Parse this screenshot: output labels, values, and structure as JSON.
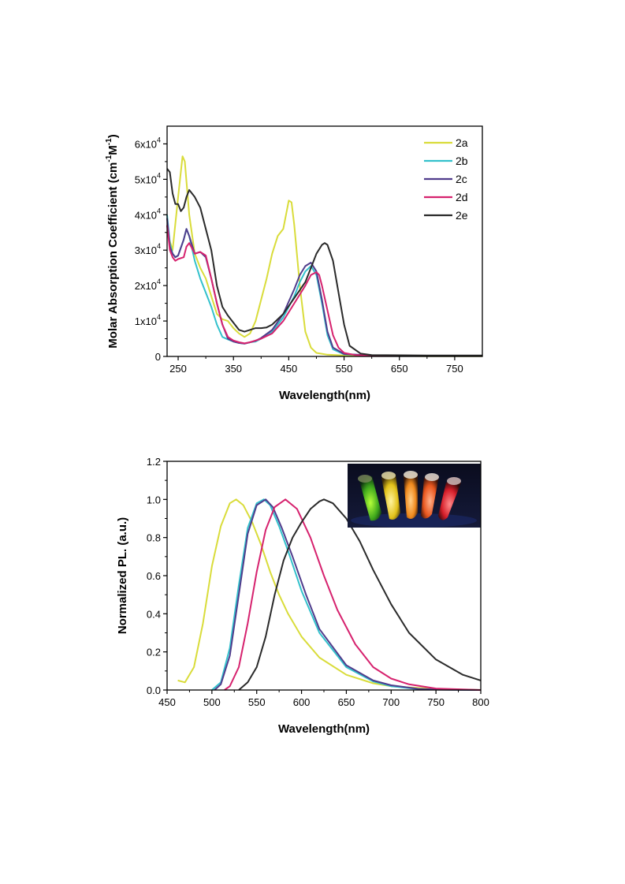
{
  "chart_data": [
    {
      "type": "line",
      "xlabel": "Wavelength(nm)",
      "ylabel": "Molar Absorption Coefficient (cm-1M-1)",
      "ylabel_parts": {
        "pre": "Molar Absorption Coefficient (cm",
        "sup1": "-1",
        "mid": "M",
        "sup2": "-1",
        "post": ")"
      },
      "xlim": [
        230,
        800
      ],
      "ylim": [
        0,
        65000
      ],
      "xticks": [
        250,
        350,
        450,
        550,
        650,
        750
      ],
      "xtick_labels": [
        "250",
        "350",
        "450",
        "550",
        "650",
        "750"
      ],
      "yticks": [
        0,
        10000,
        20000,
        30000,
        40000,
        50000,
        60000
      ],
      "ytick_labels": [
        {
          "base": "0",
          "exp": ""
        },
        {
          "base": "1x10",
          "exp": "4"
        },
        {
          "base": "2x10",
          "exp": "4"
        },
        {
          "base": "3x10",
          "exp": "4"
        },
        {
          "base": "4x10",
          "exp": "4"
        },
        {
          "base": "5x10",
          "exp": "4"
        },
        {
          "base": "6x10",
          "exp": "4"
        }
      ],
      "grid": false,
      "legend_position": "top-right",
      "series": [
        {
          "name": "2a",
          "color": "#d9dc3a",
          "x": [
            230,
            240,
            250,
            258,
            262,
            270,
            280,
            290,
            300,
            310,
            320,
            330,
            340,
            350,
            360,
            370,
            380,
            390,
            400,
            410,
            420,
            430,
            440,
            450,
            455,
            460,
            470,
            480,
            490,
            500,
            520,
            550,
            600,
            700,
            800
          ],
          "y": [
            35000,
            30000,
            45000,
            56500,
            55000,
            40000,
            29000,
            25000,
            22000,
            17000,
            12000,
            10500,
            10000,
            8000,
            6500,
            5500,
            6500,
            10000,
            16000,
            22000,
            29000,
            34000,
            36000,
            44000,
            43500,
            37000,
            20000,
            7000,
            2500,
            1000,
            500,
            300,
            200,
            100,
            100
          ]
        },
        {
          "name": "2b",
          "color": "#33c1cc",
          "x": [
            230,
            235,
            240,
            245,
            250,
            260,
            265,
            270,
            280,
            290,
            300,
            310,
            320,
            330,
            340,
            350,
            360,
            370,
            380,
            390,
            400,
            420,
            440,
            460,
            470,
            480,
            490,
            500,
            510,
            520,
            530,
            550,
            600,
            700,
            800
          ],
          "y": [
            40000,
            32000,
            29000,
            28000,
            28500,
            33000,
            36000,
            34000,
            27000,
            22000,
            18000,
            14000,
            9000,
            5500,
            4800,
            4200,
            3800,
            3600,
            4000,
            4200,
            5000,
            7000,
            11000,
            17000,
            21000,
            24000,
            25500,
            23000,
            15000,
            6000,
            2000,
            600,
            300,
            200,
            200
          ]
        },
        {
          "name": "2c",
          "color": "#503c8c",
          "x": [
            230,
            235,
            240,
            245,
            250,
            260,
            265,
            270,
            280,
            290,
            300,
            310,
            320,
            330,
            340,
            350,
            360,
            370,
            380,
            390,
            400,
            420,
            440,
            460,
            470,
            480,
            490,
            500,
            510,
            520,
            530,
            550,
            600,
            700,
            800
          ],
          "y": [
            39000,
            31000,
            29000,
            28000,
            28500,
            33000,
            36000,
            34000,
            29000,
            29500,
            28000,
            22000,
            15000,
            9000,
            5000,
            4200,
            3800,
            3600,
            4000,
            4400,
            5200,
            7500,
            12000,
            19000,
            23000,
            25500,
            26500,
            24000,
            16000,
            7000,
            2500,
            700,
            300,
            200,
            200
          ]
        },
        {
          "name": "2d",
          "color": "#d6226e",
          "x": [
            230,
            235,
            240,
            245,
            250,
            260,
            265,
            270,
            280,
            290,
            300,
            310,
            320,
            330,
            340,
            350,
            360,
            370,
            380,
            390,
            400,
            420,
            440,
            460,
            480,
            490,
            500,
            505,
            510,
            520,
            530,
            540,
            550,
            570,
            600,
            700,
            800
          ],
          "y": [
            37000,
            30000,
            28000,
            27000,
            27500,
            28000,
            31000,
            32000,
            29000,
            29500,
            28500,
            22000,
            15000,
            9000,
            5500,
            4500,
            4000,
            3700,
            4000,
            4500,
            5000,
            6500,
            10000,
            15000,
            20000,
            23000,
            23800,
            23000,
            20000,
            13000,
            6000,
            2500,
            1000,
            400,
            300,
            200,
            200
          ]
        },
        {
          "name": "2e",
          "color": "#2a2a2a",
          "x": [
            230,
            235,
            240,
            245,
            250,
            255,
            260,
            265,
            270,
            280,
            290,
            300,
            310,
            320,
            330,
            340,
            350,
            360,
            370,
            380,
            390,
            400,
            410,
            420,
            440,
            460,
            480,
            490,
            500,
            510,
            515,
            520,
            530,
            540,
            550,
            560,
            580,
            600,
            700,
            800
          ],
          "y": [
            53000,
            52000,
            46000,
            43000,
            43000,
            41000,
            42000,
            45000,
            47000,
            45000,
            42000,
            36000,
            30000,
            20000,
            14000,
            11500,
            9500,
            7500,
            7000,
            7500,
            8000,
            8000,
            8200,
            9000,
            12000,
            16500,
            21000,
            25000,
            29000,
            31500,
            32000,
            31500,
            27000,
            18000,
            9000,
            3000,
            800,
            400,
            300,
            300
          ]
        }
      ]
    },
    {
      "type": "line",
      "xlabel": "Wavelength(nm)",
      "ylabel": "Normalized PL. (a.u.)",
      "xlim": [
        450,
        800
      ],
      "ylim": [
        0,
        1.2
      ],
      "xticks": [
        450,
        500,
        550,
        600,
        650,
        700,
        750,
        800
      ],
      "xtick_labels": [
        "450",
        "500",
        "550",
        "600",
        "650",
        "700",
        "750",
        "800"
      ],
      "yticks": [
        0,
        0.2,
        0.4,
        0.6,
        0.8,
        1.0,
        1.2
      ],
      "ytick_labels": [
        "0.0",
        "0.2",
        "0.4",
        "0.6",
        "0.8",
        "1.0",
        "1.2"
      ],
      "grid": false,
      "inset": "photo of five glowing sample vials (green, yellow, orange, orange-red, red)",
      "series": [
        {
          "color": "#d9dc3a",
          "x": [
            462,
            470,
            480,
            490,
            500,
            510,
            520,
            527,
            535,
            545,
            555,
            565,
            575,
            585,
            600,
            620,
            650,
            680,
            700,
            750,
            800
          ],
          "y": [
            0.05,
            0.04,
            0.12,
            0.35,
            0.65,
            0.86,
            0.98,
            1.0,
            0.97,
            0.88,
            0.76,
            0.62,
            0.5,
            0.4,
            0.28,
            0.17,
            0.08,
            0.035,
            0.02,
            0.005,
            0.0
          ]
        },
        {
          "color": "#33c1cc",
          "x": [
            500,
            510,
            520,
            530,
            540,
            550,
            558,
            565,
            575,
            585,
            600,
            620,
            650,
            680,
            700,
            730,
            750,
            800
          ],
          "y": [
            0.0,
            0.04,
            0.22,
            0.55,
            0.85,
            0.98,
            1.0,
            0.97,
            0.86,
            0.73,
            0.52,
            0.3,
            0.12,
            0.045,
            0.02,
            0.005,
            0.002,
            0.0
          ]
        },
        {
          "color": "#503c8c",
          "x": [
            503,
            510,
            520,
            530,
            540,
            550,
            560,
            568,
            578,
            590,
            605,
            620,
            650,
            680,
            700,
            730,
            750,
            800
          ],
          "y": [
            0.0,
            0.03,
            0.18,
            0.5,
            0.82,
            0.97,
            1.0,
            0.96,
            0.85,
            0.7,
            0.5,
            0.32,
            0.13,
            0.05,
            0.025,
            0.006,
            0.002,
            0.0
          ]
        },
        {
          "color": "#d6226e",
          "x": [
            514,
            520,
            530,
            540,
            550,
            560,
            570,
            582,
            595,
            610,
            625,
            640,
            660,
            680,
            700,
            720,
            750,
            800
          ],
          "y": [
            0.0,
            0.02,
            0.12,
            0.35,
            0.62,
            0.84,
            0.96,
            1.0,
            0.95,
            0.8,
            0.6,
            0.42,
            0.24,
            0.12,
            0.06,
            0.03,
            0.008,
            0.0
          ]
        },
        {
          "color": "#2a2a2a",
          "x": [
            530,
            540,
            550,
            560,
            570,
            580,
            590,
            600,
            610,
            620,
            625,
            635,
            650,
            665,
            680,
            700,
            720,
            750,
            780,
            800
          ],
          "y": [
            0.0,
            0.04,
            0.12,
            0.28,
            0.5,
            0.68,
            0.8,
            0.88,
            0.95,
            0.99,
            1.0,
            0.98,
            0.9,
            0.78,
            0.63,
            0.45,
            0.3,
            0.16,
            0.08,
            0.05
          ]
        }
      ]
    }
  ]
}
